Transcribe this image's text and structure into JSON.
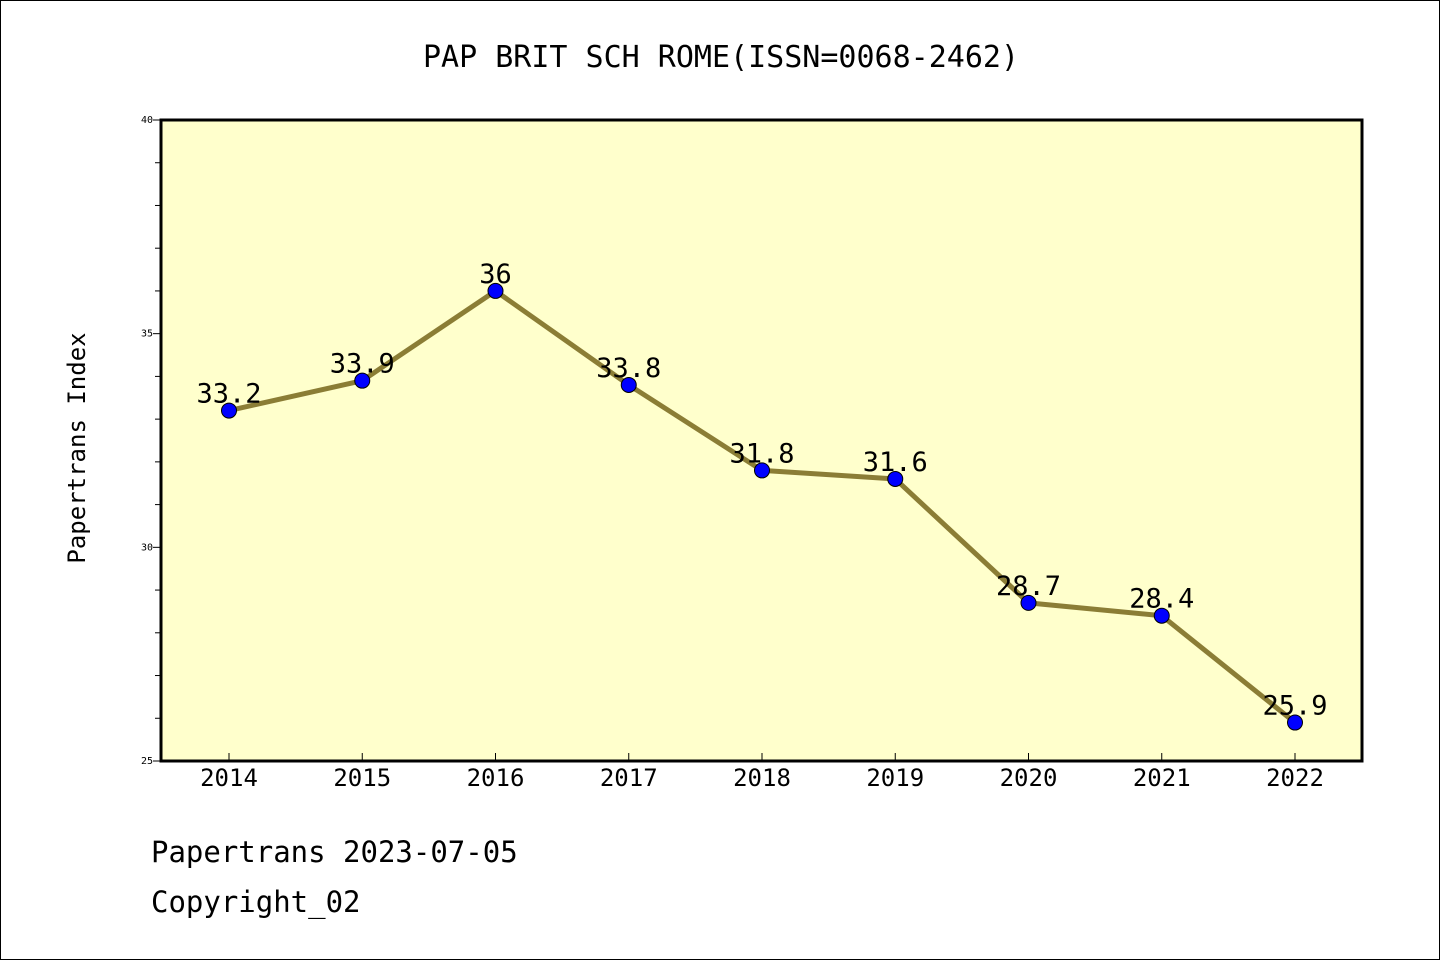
{
  "chart_data": {
    "type": "line",
    "title": "PAP BRIT SCH ROME(ISSN=0068-2462)",
    "xlabel": "",
    "ylabel": "Papertrans Index",
    "x": [
      "2014",
      "2015",
      "2016",
      "2017",
      "2018",
      "2019",
      "2020",
      "2021",
      "2022"
    ],
    "values": [
      33.2,
      33.9,
      36,
      33.8,
      31.8,
      31.6,
      28.7,
      28.4,
      25.9
    ],
    "data_labels": [
      "33.2",
      "33.9",
      "36",
      "33.8",
      "31.8",
      "31.6",
      "28.7",
      "28.4",
      "25.9"
    ],
    "ylim": [
      25,
      40
    ],
    "yticks": [
      25,
      30,
      35,
      40
    ],
    "grid": false,
    "colors": {
      "line": "#8B7D35",
      "marker": "#0000FF",
      "plot_background": "#FFFFCC"
    }
  },
  "footer": {
    "source": "Papertrans 2023-07-05",
    "copyright": "Copyright_02"
  }
}
